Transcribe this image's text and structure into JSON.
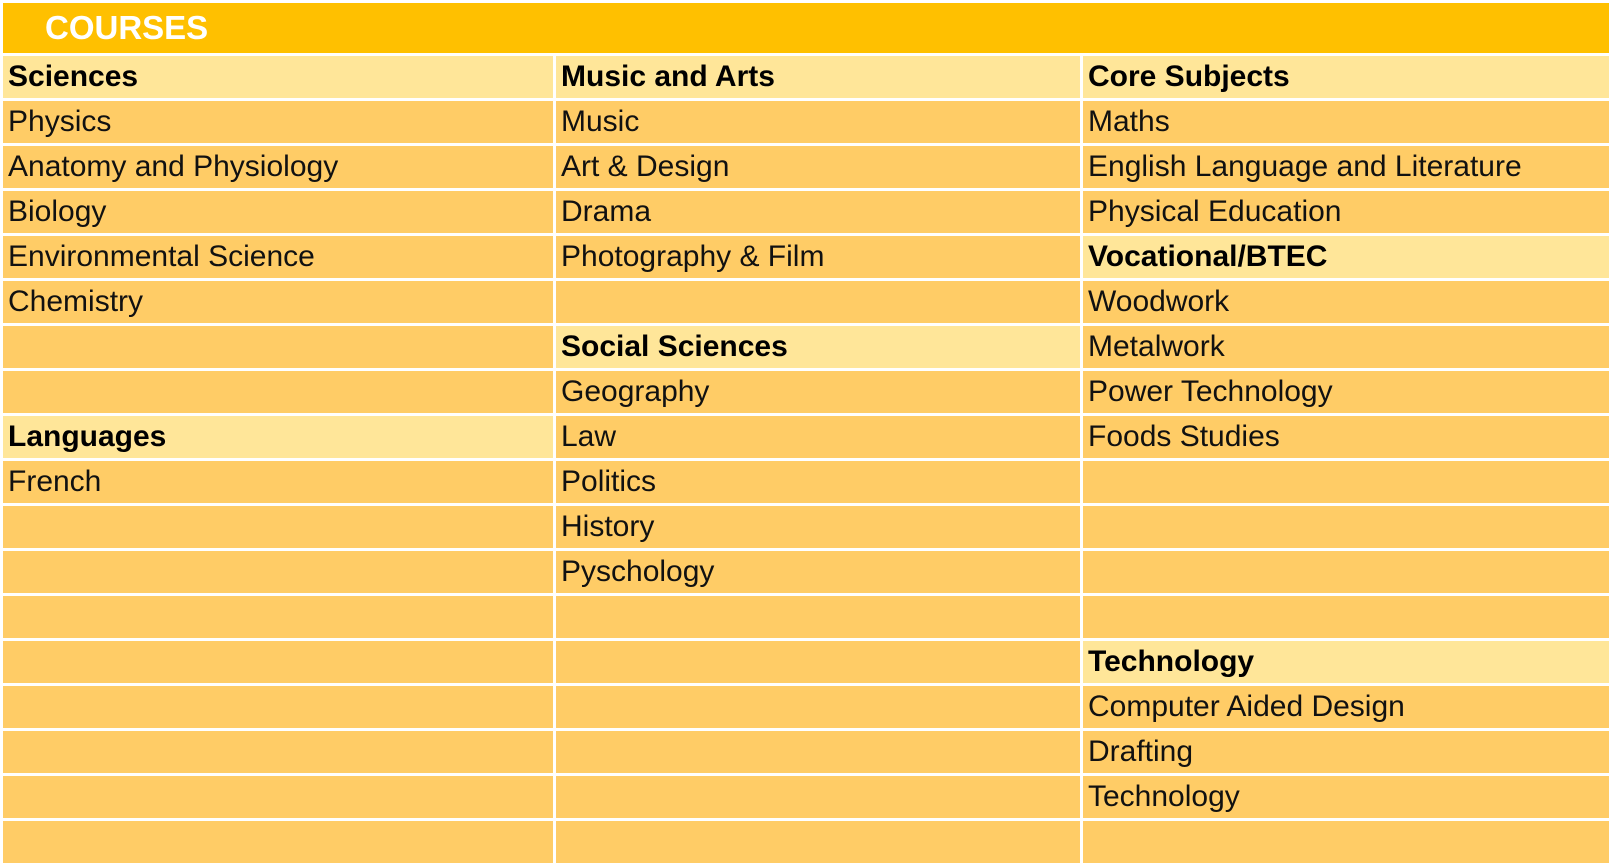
{
  "title": "COURSES",
  "rows": [
    [
      {
        "text": "Sciences",
        "head": true
      },
      {
        "text": "Music and Arts",
        "head": true
      },
      {
        "text": "Core Subjects",
        "head": true
      }
    ],
    [
      {
        "text": "Physics"
      },
      {
        "text": "Music"
      },
      {
        "text": "Maths"
      }
    ],
    [
      {
        "text": "Anatomy and Physiology"
      },
      {
        "text": "Art & Design"
      },
      {
        "text": "English Language and Literature"
      }
    ],
    [
      {
        "text": "Biology"
      },
      {
        "text": "Drama"
      },
      {
        "text": "Physical Education"
      }
    ],
    [
      {
        "text": "Environmental Science"
      },
      {
        "text": "Photography & Film"
      },
      {
        "text": "Vocational/BTEC",
        "head": true
      }
    ],
    [
      {
        "text": "Chemistry"
      },
      {
        "text": ""
      },
      {
        "text": "Woodwork"
      }
    ],
    [
      {
        "text": ""
      },
      {
        "text": "Social Sciences",
        "head": true
      },
      {
        "text": "Metalwork"
      }
    ],
    [
      {
        "text": ""
      },
      {
        "text": "Geography"
      },
      {
        "text": "Power Technology"
      }
    ],
    [
      {
        "text": "Languages",
        "head": true
      },
      {
        "text": "Law"
      },
      {
        "text": "Foods Studies"
      }
    ],
    [
      {
        "text": "French"
      },
      {
        "text": "Politics"
      },
      {
        "text": ""
      }
    ],
    [
      {
        "text": ""
      },
      {
        "text": "History"
      },
      {
        "text": ""
      }
    ],
    [
      {
        "text": ""
      },
      {
        "text": "Pyschology"
      },
      {
        "text": ""
      }
    ],
    [
      {
        "text": ""
      },
      {
        "text": ""
      },
      {
        "text": ""
      }
    ],
    [
      {
        "text": ""
      },
      {
        "text": ""
      },
      {
        "text": "Technology",
        "head": true
      }
    ],
    [
      {
        "text": ""
      },
      {
        "text": ""
      },
      {
        "text": "Computer Aided Design"
      }
    ],
    [
      {
        "text": ""
      },
      {
        "text": ""
      },
      {
        "text": "Drafting"
      }
    ],
    [
      {
        "text": ""
      },
      {
        "text": ""
      },
      {
        "text": "Technology"
      }
    ],
    [
      {
        "text": ""
      },
      {
        "text": ""
      },
      {
        "text": ""
      }
    ]
  ]
}
